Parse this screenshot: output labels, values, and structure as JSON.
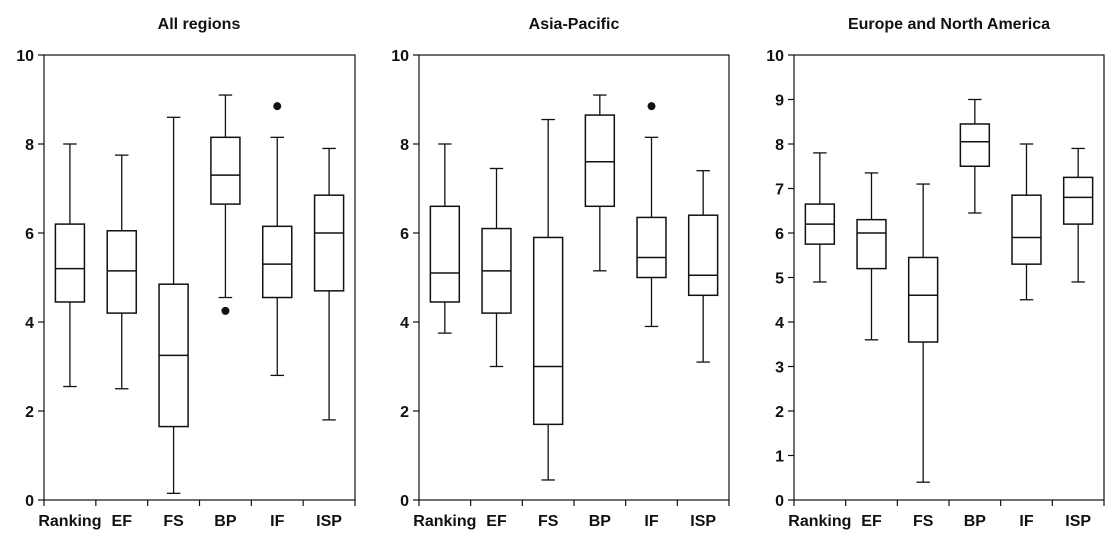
{
  "chart_data": [
    {
      "type": "box",
      "title": "All regions",
      "categories": [
        "Ranking",
        "EF",
        "FS",
        "BP",
        "IF",
        "ISP"
      ],
      "ylim": [
        0,
        10
      ],
      "yticks": [
        0,
        2,
        4,
        6,
        8,
        10
      ],
      "boxes": [
        {
          "min": 2.55,
          "q1": 4.45,
          "median": 5.2,
          "q3": 6.2,
          "max": 8.0,
          "outliers": []
        },
        {
          "min": 2.5,
          "q1": 4.2,
          "median": 5.15,
          "q3": 6.05,
          "max": 7.75,
          "outliers": []
        },
        {
          "min": 0.15,
          "q1": 1.65,
          "median": 3.25,
          "q3": 4.85,
          "max": 8.6,
          "outliers": []
        },
        {
          "min": 4.55,
          "q1": 6.65,
          "median": 7.3,
          "q3": 8.15,
          "max": 9.1,
          "outliers": [
            4.25
          ]
        },
        {
          "min": 2.8,
          "q1": 4.55,
          "median": 5.3,
          "q3": 6.15,
          "max": 8.15,
          "outliers": [
            8.85
          ]
        },
        {
          "min": 1.8,
          "q1": 4.7,
          "median": 6.0,
          "q3": 6.85,
          "max": 7.9,
          "outliers": []
        }
      ]
    },
    {
      "type": "box",
      "title": "Asia-Pacific",
      "categories": [
        "Ranking",
        "EF",
        "FS",
        "BP",
        "IF",
        "ISP"
      ],
      "ylim": [
        0,
        10
      ],
      "yticks": [
        0,
        2,
        4,
        6,
        8,
        10
      ],
      "boxes": [
        {
          "min": 3.75,
          "q1": 4.45,
          "median": 5.1,
          "q3": 6.6,
          "max": 8.0,
          "outliers": []
        },
        {
          "min": 3.0,
          "q1": 4.2,
          "median": 5.15,
          "q3": 6.1,
          "max": 7.45,
          "outliers": []
        },
        {
          "min": 0.45,
          "q1": 1.7,
          "median": 3.0,
          "q3": 5.9,
          "max": 8.55,
          "outliers": []
        },
        {
          "min": 5.15,
          "q1": 6.6,
          "median": 7.6,
          "q3": 8.65,
          "max": 9.1,
          "outliers": []
        },
        {
          "min": 3.9,
          "q1": 5.0,
          "median": 5.45,
          "q3": 6.35,
          "max": 8.15,
          "outliers": [
            8.85
          ]
        },
        {
          "min": 3.1,
          "q1": 4.6,
          "median": 5.05,
          "q3": 6.4,
          "max": 7.4,
          "outliers": []
        }
      ]
    },
    {
      "type": "box",
      "title": "Europe and North America",
      "categories": [
        "Ranking",
        "EF",
        "FS",
        "BP",
        "IF",
        "ISP"
      ],
      "ylim": [
        0,
        10
      ],
      "yticks": [
        0,
        1,
        2,
        3,
        4,
        5,
        6,
        7,
        8,
        9,
        10
      ],
      "boxes": [
        {
          "min": 4.9,
          "q1": 5.75,
          "median": 6.2,
          "q3": 6.65,
          "max": 7.8,
          "outliers": []
        },
        {
          "min": 3.6,
          "q1": 5.2,
          "median": 6.0,
          "q3": 6.3,
          "max": 7.35,
          "outliers": []
        },
        {
          "min": 0.4,
          "q1": 3.55,
          "median": 4.6,
          "q3": 5.45,
          "max": 7.1,
          "outliers": []
        },
        {
          "min": 6.45,
          "q1": 7.5,
          "median": 8.05,
          "q3": 8.45,
          "max": 9.0,
          "outliers": []
        },
        {
          "min": 4.5,
          "q1": 5.3,
          "median": 5.9,
          "q3": 6.85,
          "max": 8.0,
          "outliers": []
        },
        {
          "min": 4.9,
          "q1": 6.2,
          "median": 6.8,
          "q3": 7.25,
          "max": 7.9,
          "outliers": []
        }
      ]
    }
  ]
}
